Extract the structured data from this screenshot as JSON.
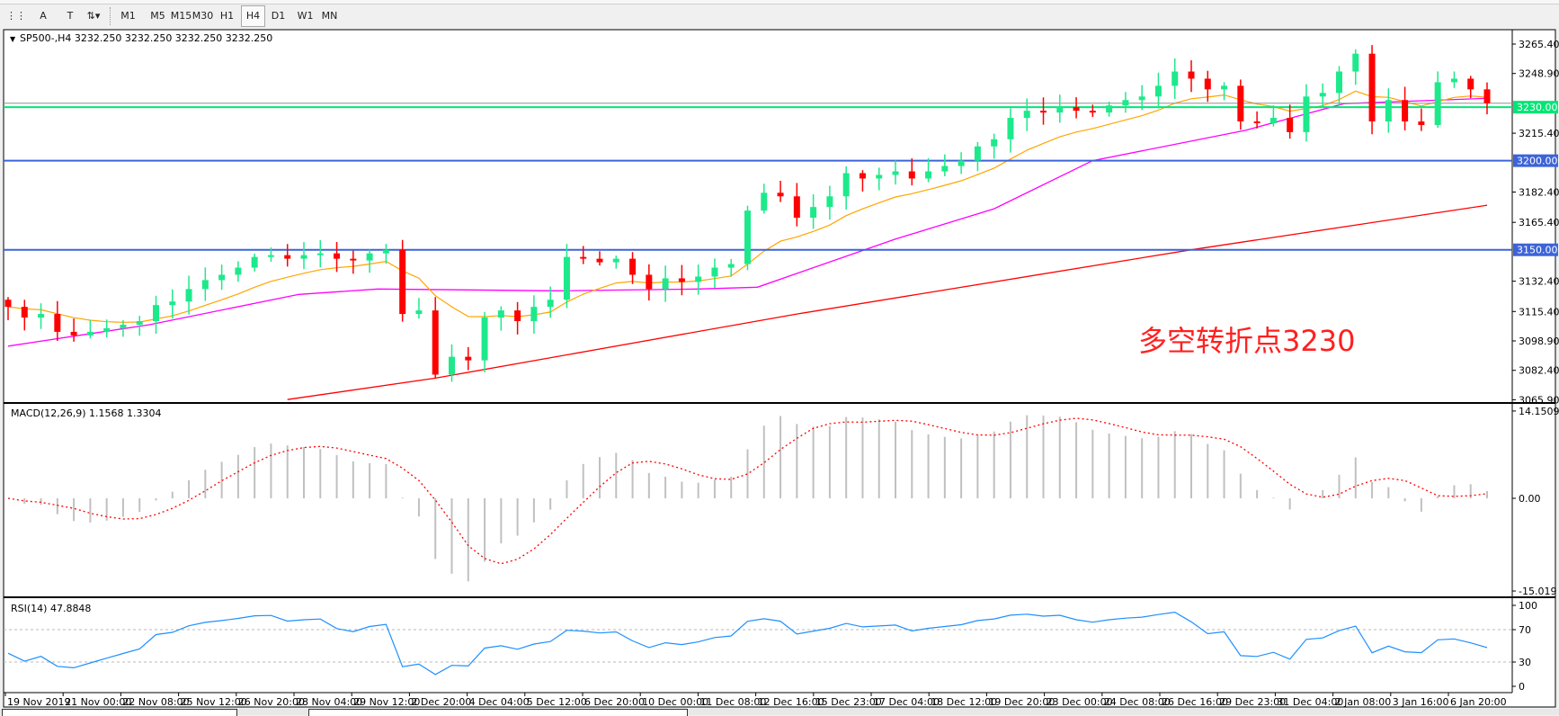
{
  "toolbar": {
    "tools": [
      {
        "name": "grid-properties-icon",
        "glyph": "⋮⋮"
      },
      {
        "name": "text-tool-icon",
        "glyph": "A"
      },
      {
        "name": "text-label-tool-icon",
        "glyph": "T"
      },
      {
        "name": "arrows-tool-icon",
        "glyph": "⇅▾"
      }
    ],
    "timeframes": [
      "M1",
      "M5",
      "M15",
      "M30",
      "H1",
      "H4",
      "D1",
      "W1",
      "MN"
    ],
    "active_timeframe": "H4"
  },
  "chart": {
    "header": "SP500-,H4  3232.250 3232.250 3232.250 3232.250",
    "annotation": "多空转折点3230",
    "annotation_color": "#ff2020",
    "price_ticks": [
      "3265.400",
      "3248.900",
      "3215.400",
      "3182.400",
      "3165.400",
      "3132.400",
      "3115.400",
      "3098.900",
      "3082.400",
      "3065.900"
    ],
    "price_tick_values": [
      3265.4,
      3248.9,
      3215.4,
      3182.4,
      3165.4,
      3132.4,
      3115.4,
      3098.9,
      3082.4,
      3065.9
    ],
    "price_range": [
      3065.9,
      3265.4
    ],
    "levels": [
      {
        "value": 3230.0,
        "label": "3230.000",
        "color": "#00e676"
      },
      {
        "value": 3200.0,
        "label": "3200.000",
        "color": "#3c64d8"
      },
      {
        "value": 3150.0,
        "label": "3150.000",
        "color": "#3c64d8"
      }
    ],
    "current_price": 3232.25,
    "bull_color": "#1de98b",
    "bear_color": "#ff0000",
    "first_open": 3122,
    "closes": [
      3118,
      3112,
      3114,
      3104,
      3102,
      3104,
      3106,
      3108,
      3110,
      3119,
      3121,
      3128,
      3133,
      3136,
      3140,
      3146,
      3147,
      3145,
      3147,
      3148,
      3145,
      3144,
      3148,
      3150,
      3114,
      3116,
      3080,
      3090,
      3088,
      3112,
      3116,
      3110,
      3118,
      3122,
      3146,
      3145,
      3143,
      3145,
      3136,
      3128,
      3134,
      3132,
      3135,
      3140,
      3142,
      3172,
      3182,
      3180,
      3168,
      3174,
      3180,
      3193,
      3190,
      3192,
      3194,
      3190,
      3194,
      3197,
      3200,
      3208,
      3212,
      3224,
      3228,
      3227,
      3230,
      3228,
      3227,
      3231,
      3234,
      3236,
      3242,
      3250,
      3246,
      3240,
      3242,
      3222,
      3221,
      3224,
      3216,
      3236,
      3238,
      3250,
      3260,
      3222,
      3234,
      3222,
      3220,
      3244,
      3246,
      3240,
      3232.25
    ],
    "ma_slow": {
      "color": "#ff0000",
      "points": [
        [
          17,
          3066
        ],
        [
          26,
          3078
        ],
        [
          48,
          3114
        ],
        [
          72,
          3150
        ],
        [
          90,
          3175
        ]
      ]
    },
    "ma_mid": {
      "color": "#ff00ff",
      "points": [
        [
          0,
          3096
        ],
        [
          8.6,
          3108
        ],
        [
          17.7,
          3125
        ],
        [
          22.5,
          3128
        ],
        [
          33.4,
          3127
        ],
        [
          42,
          3128
        ],
        [
          45.6,
          3129
        ],
        [
          54,
          3156
        ],
        [
          60,
          3173
        ],
        [
          66,
          3200
        ],
        [
          75.3,
          3217
        ],
        [
          81.3,
          3232
        ],
        [
          90,
          3235
        ]
      ]
    },
    "ma_fast": {
      "color": "#ffa500"
    }
  },
  "macd": {
    "label": "MACD(12,26,9) 1.1568 1.3304",
    "ticks": [
      "14.1509",
      "0.00",
      "-15.019"
    ],
    "tick_values": [
      14.1509,
      0,
      -15.019
    ],
    "hist_color": "#c0c0c0",
    "signal_color": "#ff0000"
  },
  "rsi": {
    "label": "RSI(14) 47.8848",
    "ticks": [
      "100",
      "70",
      "30",
      "0"
    ],
    "tick_values": [
      100,
      70,
      30,
      0
    ],
    "line_color": "#1e90ff"
  },
  "time_labels": [
    "19 Nov 2019",
    "21 Nov 00:00",
    "22 Nov 08:00",
    "25 Nov 12:00",
    "26 Nov 20:00",
    "28 Nov 04:00",
    "29 Nov 12:00",
    "2 Dec 20:00",
    "4 Dec 04:00",
    "5 Dec 12:00",
    "6 Dec 20:00",
    "10 Dec 00:00",
    "11 Dec 08:00",
    "12 Dec 16:00",
    "15 Dec 23:00",
    "17 Dec 04:00",
    "18 Dec 12:00",
    "19 Dec 20:00",
    "23 Dec 00:00",
    "24 Dec 08:00",
    "26 Dec 16:00",
    "29 Dec 23:00",
    "31 Dec 04:00",
    "2 Jan 08:00",
    "3 Jan 16:00",
    "6 Jan 20:00"
  ]
}
